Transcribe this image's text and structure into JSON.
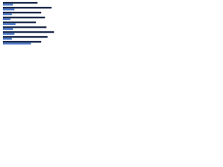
{
  "chart_data": {
    "type": "hbar",
    "categories": [
      null,
      null,
      null,
      null,
      null,
      null,
      null,
      null,
      null
    ],
    "series": [
      {
        "color": "#1b2a4a",
        "values": [
          54,
          76,
          60,
          66,
          52,
          68,
          80,
          70,
          60
        ]
      },
      {
        "color": "#4a78c8",
        "values": [
          16,
          18,
          14,
          12,
          20,
          16,
          18,
          14,
          44
        ]
      }
    ],
    "xlim": [
      0,
      100
    ]
  }
}
